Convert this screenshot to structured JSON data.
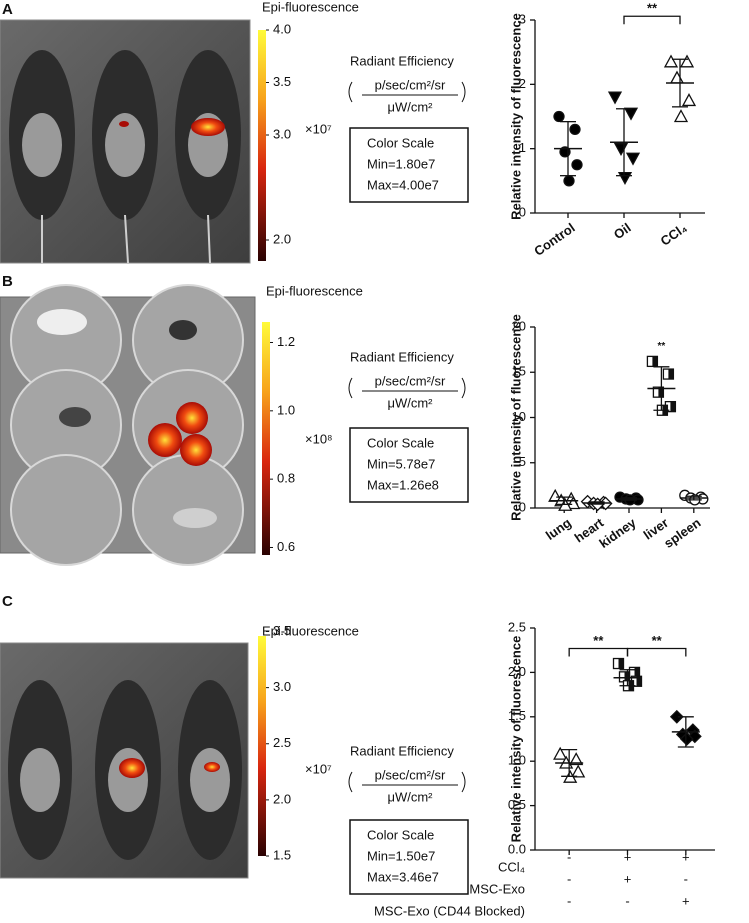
{
  "panels": [
    {
      "label": "A",
      "colorbar": {
        "title": "Epi-fluorescence",
        "range": [
          1.8,
          4.0
        ],
        "ticks": [
          {
            "value": 4,
            "label": "4.0"
          },
          3.5,
          {
            "value": 3,
            "label": "3.0"
          },
          {
            "value": 2,
            "label": "2.0"
          }
        ],
        "multiplier": "×10⁷"
      },
      "legend": {
        "title": "Radiant Efficiency",
        "numerator": "p/sec/cm²/sr",
        "denominator": "μW/cm²",
        "box": [
          "Color Scale",
          "Min=1.80e7",
          "Max=4.00e7"
        ]
      }
    },
    {
      "label": "B",
      "colorbar": {
        "title": "Epi-fluorescence",
        "range": [
          0.578,
          1.26
        ],
        "ticks": [
          1.2,
          {
            "value": 1,
            "label": "1.0"
          },
          0.8,
          0.6
        ],
        "multiplier": "×10⁸"
      },
      "legend": {
        "title": "Radiant Efficiency",
        "numerator": "p/sec/cm²/sr",
        "denominator": "μW/cm²",
        "box": [
          "Color Scale",
          "Min=5.78e7",
          "Max=1.26e8"
        ]
      }
    },
    {
      "label": "C",
      "colorbar": {
        "title": "Epi-fluorescence",
        "range": [
          1.5,
          3.46
        ],
        "ticks": [
          3.5,
          {
            "value": 3,
            "label": "3.0"
          },
          2.5,
          {
            "value": 2,
            "label": "2.0"
          },
          1.5
        ],
        "multiplier": "×10⁷"
      },
      "legend": {
        "title": "Radiant Efficiency",
        "numerator": "p/sec/cm²/sr",
        "denominator": "μW/cm²",
        "box": [
          "Color Scale",
          "Min=1.50e7",
          "Max=3.46e7"
        ]
      }
    }
  ],
  "chart_data": [
    {
      "type": "dot",
      "ylabel": "Relative intensity of fluorescence",
      "categories": [
        "Control",
        "Oil",
        "CCl₄"
      ],
      "ylim": [
        0,
        3
      ],
      "yticks": [
        0,
        1,
        2,
        3
      ],
      "points": [
        [
          1.5,
          1.3,
          0.95,
          0.75,
          0.5
        ],
        [
          1.8,
          1.55,
          1.0,
          0.85,
          0.55
        ],
        [
          2.35,
          2.35,
          2.1,
          1.75,
          1.5
        ]
      ],
      "means": [
        1.0,
        1.1,
        2.02
      ],
      "errors": [
        0.42,
        0.52,
        0.37
      ],
      "markers": [
        "circle",
        "triangle-down",
        "triangle-up"
      ],
      "marker_fills": [
        "black",
        "black",
        "white"
      ],
      "significance": [
        {
          "groups": [
            1,
            2
          ],
          "label": "**"
        }
      ]
    },
    {
      "type": "dot",
      "ylabel": "Relative intensity of fluorescence",
      "categories": [
        "lung",
        "heart",
        "kidney",
        "liver",
        "spleen"
      ],
      "ylim": [
        0,
        20
      ],
      "yticks": [
        0,
        5,
        10,
        15,
        20
      ],
      "points": [
        [
          1.3,
          1.0,
          0.8,
          0.5,
          0.3
        ],
        [
          0.7,
          0.6,
          0.5,
          0.5,
          0.4
        ],
        [
          1.2,
          1.1,
          1.0,
          0.9,
          0.9
        ],
        [
          16.2,
          14.8,
          12.8,
          11.2,
          10.8
        ],
        [
          1.4,
          1.2,
          1.1,
          1.0,
          0.9
        ]
      ],
      "means": [
        0.8,
        0.55,
        1.0,
        13.2,
        1.1
      ],
      "errors": [
        0.4,
        0.12,
        0.13,
        2.4,
        0.2
      ],
      "markers": [
        "triangle-up",
        "diamond",
        "circle",
        "square",
        "circle"
      ],
      "marker_fills": [
        "white",
        "white",
        "black",
        "half",
        "white"
      ],
      "significance": [
        {
          "groups": [
            3
          ],
          "label": "**"
        }
      ]
    },
    {
      "type": "dot",
      "ylabel": "Relative intensity of fluorescence",
      "categories": [
        null,
        null,
        null
      ],
      "ylim": [
        0,
        2.5
      ],
      "yticks": [
        {
          "value": 0,
          "label": "0.0"
        },
        0.5,
        {
          "value": 1,
          "label": "1.0"
        },
        1.5,
        {
          "value": 2,
          "label": "2.0"
        },
        2.5
      ],
      "points": [
        [
          1.08,
          1.02,
          0.98,
          0.88,
          0.82
        ],
        [
          2.1,
          2.0,
          1.95,
          1.9,
          1.85
        ],
        [
          1.5,
          1.35,
          1.3,
          1.28,
          1.25
        ]
      ],
      "means": [
        0.98,
        1.94,
        1.33
      ],
      "errors": [
        0.15,
        0.09,
        0.17
      ],
      "markers": [
        "triangle-up",
        "square",
        "diamond"
      ],
      "marker_fills": [
        "white",
        "half",
        "black"
      ],
      "significance": [
        {
          "groups": [
            0,
            1
          ],
          "label": "**"
        },
        {
          "groups": [
            1,
            2
          ],
          "label": "**"
        }
      ],
      "condition_table": [
        {
          "label": "CCl₄",
          "values": [
            "-",
            "+",
            "+"
          ]
        },
        {
          "label": "MSC-Exo",
          "values": [
            "-",
            "+",
            "-"
          ]
        },
        {
          "label": "MSC-Exo (CD44 Blocked)",
          "values": [
            "-",
            "-",
            "+"
          ]
        }
      ]
    }
  ]
}
